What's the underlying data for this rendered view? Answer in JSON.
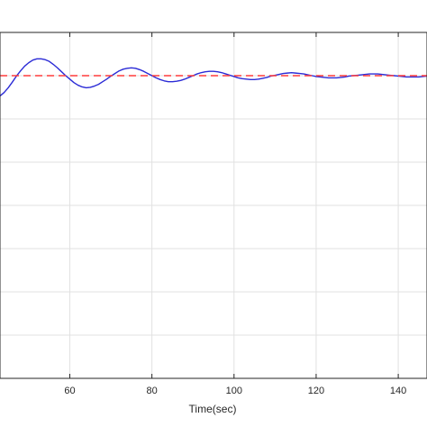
{
  "chart_data": {
    "type": "line",
    "title": "",
    "xlabel": "Time(sec)",
    "ylabel": "",
    "xlim": [
      43,
      147
    ],
    "ylim": [
      0,
      8
    ],
    "xticks": [
      60,
      80,
      100,
      120,
      140
    ],
    "grid": true,
    "series": [
      {
        "style": "solid",
        "color": "#2b2bd6",
        "x": [
          43,
          44,
          45,
          46,
          47,
          48,
          49,
          50,
          51,
          52,
          53,
          54,
          55,
          56,
          57,
          58,
          59,
          60,
          61,
          62,
          63,
          64,
          65,
          66,
          67,
          68,
          69,
          70,
          71,
          72,
          73,
          74,
          75,
          76,
          77,
          78,
          79,
          80,
          81,
          82,
          83,
          84,
          85,
          86,
          87,
          88,
          89,
          90,
          91,
          92,
          93,
          94,
          95,
          96,
          97,
          98,
          99,
          100,
          101,
          102,
          103,
          104,
          105,
          106,
          107,
          108,
          109,
          110,
          111,
          112,
          113,
          114,
          115,
          116,
          117,
          118,
          119,
          120,
          121,
          122,
          123,
          124,
          125,
          126,
          127,
          128,
          129,
          130,
          131,
          132,
          133,
          134,
          135,
          136,
          137,
          138,
          139,
          140,
          141,
          142,
          143,
          144,
          145,
          146,
          147
        ],
        "y": [
          6.53,
          6.61,
          6.72,
          6.85,
          6.99,
          7.11,
          7.22,
          7.3,
          7.36,
          7.39,
          7.39,
          7.37,
          7.33,
          7.26,
          7.18,
          7.09,
          7.0,
          6.92,
          6.84,
          6.78,
          6.74,
          6.72,
          6.73,
          6.76,
          6.8,
          6.86,
          6.92,
          6.99,
          7.05,
          7.11,
          7.15,
          7.17,
          7.18,
          7.17,
          7.14,
          7.1,
          7.05,
          7.0,
          6.95,
          6.91,
          6.88,
          6.86,
          6.86,
          6.87,
          6.89,
          6.92,
          6.96,
          7.0,
          7.04,
          7.07,
          7.09,
          7.1,
          7.1,
          7.09,
          7.07,
          7.04,
          7.01,
          6.98,
          6.95,
          6.93,
          6.92,
          6.91,
          6.91,
          6.92,
          6.94,
          6.96,
          6.99,
          7.01,
          7.03,
          7.05,
          7.06,
          7.07,
          7.06,
          7.05,
          7.04,
          7.02,
          7.0,
          6.98,
          6.97,
          6.96,
          6.95,
          6.95,
          6.95,
          6.96,
          6.97,
          6.99,
          7.0,
          7.01,
          7.02,
          7.03,
          7.04,
          7.04,
          7.04,
          7.03,
          7.02,
          7.01,
          7.0,
          6.99,
          6.98,
          6.97,
          6.97,
          6.97,
          6.97,
          6.98,
          6.99
        ]
      },
      {
        "style": "dashed",
        "color": "#ff3b3b",
        "x": [
          43,
          147
        ],
        "y": [
          7.0,
          7.0
        ]
      }
    ]
  }
}
